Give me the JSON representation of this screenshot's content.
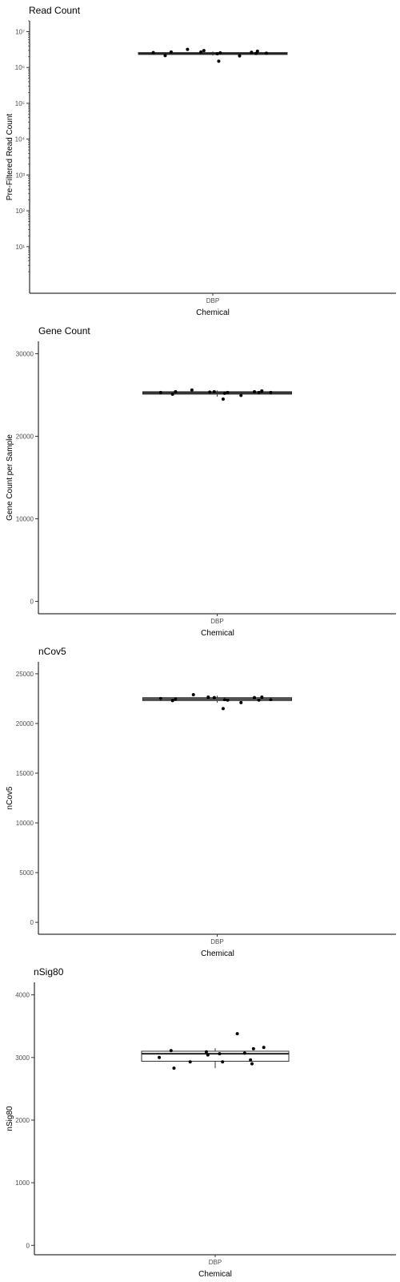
{
  "chart_data": [
    {
      "type": "box",
      "title": "Read Count",
      "xlabel": "Chemical",
      "ylabel": "Pre-Filtered Read Count",
      "categories": [
        "DBP"
      ],
      "yscale": "log10",
      "ylim": [
        0.5,
        20000000
      ],
      "yticks": [
        {
          "value": 10,
          "label": "10¹"
        },
        {
          "value": 100,
          "label": "10²"
        },
        {
          "value": 1000,
          "label": "10³"
        },
        {
          "value": 10000,
          "label": "10⁴"
        },
        {
          "value": 100000,
          "label": "10⁵"
        },
        {
          "value": 1000000,
          "label": "10⁶"
        },
        {
          "value": 10000000,
          "label": "10⁷"
        }
      ],
      "box": {
        "q1": 2300000,
        "median": 2450000,
        "q3": 2600000,
        "whisker_low": 2150000,
        "whisker_high": 2800000
      },
      "points": [
        {
          "offset": -0.4,
          "y": 2600000
        },
        {
          "offset": -0.32,
          "y": 2150000
        },
        {
          "offset": -0.28,
          "y": 2700000
        },
        {
          "offset": -0.17,
          "y": 3200000
        },
        {
          "offset": -0.08,
          "y": 2700000
        },
        {
          "offset": -0.06,
          "y": 2950000
        },
        {
          "offset": 0.03,
          "y": 2400000
        },
        {
          "offset": 0.04,
          "y": 1500000
        },
        {
          "offset": 0.05,
          "y": 2550000
        },
        {
          "offset": 0.18,
          "y": 2100000
        },
        {
          "offset": 0.26,
          "y": 2650000
        },
        {
          "offset": 0.29,
          "y": 2450000
        },
        {
          "offset": 0.3,
          "y": 2850000
        },
        {
          "offset": 0.36,
          "y": 2500000
        }
      ]
    },
    {
      "type": "box",
      "title": "Gene Count",
      "xlabel": "Chemical",
      "ylabel": "Gene Count per Sample",
      "categories": [
        "DBP"
      ],
      "yscale": "linear",
      "ylim": [
        -1500,
        31500
      ],
      "yticks": [
        {
          "value": 0,
          "label": "0"
        },
        {
          "value": 10000,
          "label": "10000"
        },
        {
          "value": 20000,
          "label": "20000"
        },
        {
          "value": 30000,
          "label": "30000"
        }
      ],
      "box": {
        "q1": 25100,
        "median": 25250,
        "q3": 25400,
        "whisker_low": 24800,
        "whisker_high": 25550
      },
      "points": [
        {
          "offset": -0.38,
          "y": 25300
        },
        {
          "offset": -0.3,
          "y": 25100
        },
        {
          "offset": -0.28,
          "y": 25400
        },
        {
          "offset": -0.17,
          "y": 25600
        },
        {
          "offset": -0.05,
          "y": 25350
        },
        {
          "offset": -0.02,
          "y": 25400
        },
        {
          "offset": 0.07,
          "y": 25300
        },
        {
          "offset": 0.04,
          "y": 24500
        },
        {
          "offset": 0.05,
          "y": 25200
        },
        {
          "offset": 0.16,
          "y": 24950
        },
        {
          "offset": 0.25,
          "y": 25400
        },
        {
          "offset": 0.28,
          "y": 25300
        },
        {
          "offset": 0.3,
          "y": 25500
        },
        {
          "offset": 0.36,
          "y": 25300
        }
      ]
    },
    {
      "type": "box",
      "title": "nCov5",
      "xlabel": "Chemical",
      "ylabel": "nCov5",
      "categories": [
        "DBP"
      ],
      "yscale": "linear",
      "ylim": [
        -1200,
        26200
      ],
      "yticks": [
        {
          "value": 0,
          "label": "0"
        },
        {
          "value": 5000,
          "label": "5000"
        },
        {
          "value": 10000,
          "label": "10000"
        },
        {
          "value": 15000,
          "label": "15000"
        },
        {
          "value": 20000,
          "label": "20000"
        },
        {
          "value": 25000,
          "label": "25000"
        }
      ],
      "box": {
        "q1": 22300,
        "median": 22450,
        "q3": 22600,
        "whisker_low": 22100,
        "whisker_high": 22800
      },
      "points": [
        {
          "offset": -0.38,
          "y": 22500
        },
        {
          "offset": -0.3,
          "y": 22300
        },
        {
          "offset": -0.28,
          "y": 22450
        },
        {
          "offset": -0.16,
          "y": 22900
        },
        {
          "offset": -0.06,
          "y": 22650
        },
        {
          "offset": -0.02,
          "y": 22600
        },
        {
          "offset": 0.07,
          "y": 22350
        },
        {
          "offset": 0.04,
          "y": 21500
        },
        {
          "offset": 0.05,
          "y": 22400
        },
        {
          "offset": 0.16,
          "y": 22100
        },
        {
          "offset": 0.25,
          "y": 22600
        },
        {
          "offset": 0.28,
          "y": 22350
        },
        {
          "offset": 0.3,
          "y": 22650
        },
        {
          "offset": 0.36,
          "y": 22400
        }
      ]
    },
    {
      "type": "box",
      "title": "nSig80",
      "xlabel": "Chemical",
      "ylabel": "nSig80",
      "categories": [
        "DBP"
      ],
      "yscale": "linear",
      "ylim": [
        -150,
        4200
      ],
      "yticks": [
        {
          "value": 0,
          "label": "0"
        },
        {
          "value": 1000,
          "label": "1000"
        },
        {
          "value": 2000,
          "label": "2000"
        },
        {
          "value": 3000,
          "label": "3000"
        },
        {
          "value": 4000,
          "label": "4000"
        }
      ],
      "box": {
        "q1": 2940,
        "median": 3060,
        "q3": 3100,
        "whisker_low": 2830,
        "whisker_high": 3150
      },
      "points": [
        {
          "offset": -0.38,
          "y": 3000
        },
        {
          "offset": -0.3,
          "y": 3110
        },
        {
          "offset": -0.28,
          "y": 2830
        },
        {
          "offset": -0.17,
          "y": 2930
        },
        {
          "offset": -0.06,
          "y": 3090
        },
        {
          "offset": -0.05,
          "y": 3040
        },
        {
          "offset": 0.03,
          "y": 3060
        },
        {
          "offset": 0.05,
          "y": 2930
        },
        {
          "offset": 0.15,
          "y": 3380
        },
        {
          "offset": 0.2,
          "y": 3070
        },
        {
          "offset": 0.24,
          "y": 2960
        },
        {
          "offset": 0.25,
          "y": 2900
        },
        {
          "offset": 0.26,
          "y": 3140
        },
        {
          "offset": 0.33,
          "y": 3160
        }
      ]
    }
  ]
}
